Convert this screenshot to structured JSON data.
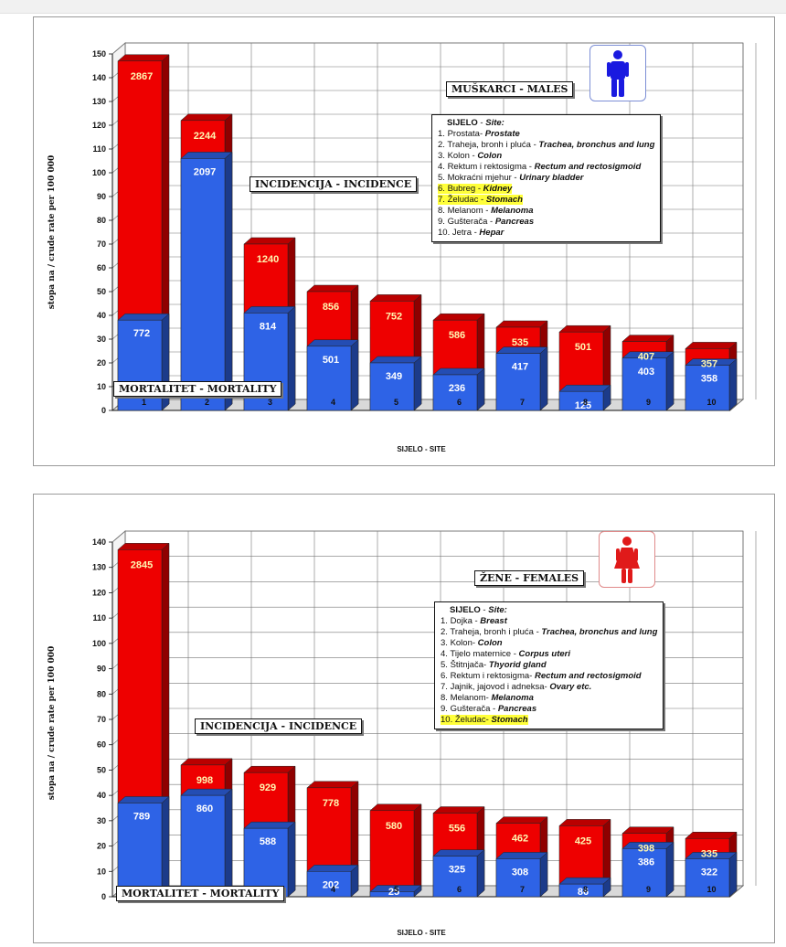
{
  "chart_data": [
    {
      "type": "bar",
      "title": "MUŠKARCI - MALES",
      "xlabel": "SIJELO - SITE",
      "ylabel": "stopa na / crude rate per 100 000",
      "ylim": [
        0,
        150
      ],
      "yticks": [
        "0",
        "10",
        "20",
        "30",
        "40",
        "50",
        "60",
        "70",
        "80",
        "90",
        "100",
        "110",
        "120",
        "130",
        "140",
        "150"
      ],
      "categories": [
        "1",
        "2",
        "3",
        "4",
        "5",
        "6",
        "7",
        "8",
        "9",
        "10"
      ],
      "series": [
        {
          "name": "INCIDENCIJA - INCIDENCE",
          "color": "#ee0000",
          "values": [
            147,
            122,
            70,
            50,
            46,
            38,
            35,
            33,
            29,
            26
          ],
          "labels": [
            "2867",
            "2244",
            "1240",
            "856",
            "752",
            "586",
            "535",
            "501",
            "407",
            "357"
          ]
        },
        {
          "name": "MORTALITET - MORTALITY",
          "color": "#2e63e6",
          "values": [
            38,
            106,
            41,
            27,
            20,
            15,
            24,
            8,
            22,
            19
          ],
          "labels": [
            "772",
            "2097",
            "814",
            "501",
            "349",
            "236",
            "417",
            "125",
            "403",
            "358"
          ]
        }
      ],
      "grid": true,
      "legend_title": "SIJELO - Site:",
      "legend": [
        {
          "num": "1.",
          "local": "Prostata-",
          "en": "Prostate",
          "highlight": false
        },
        {
          "num": "2.",
          "local": "Traheja, bronh i pluća -",
          "en": "Trachea, bronchus and lung",
          "highlight": false
        },
        {
          "num": "3.",
          "local": "Kolon -",
          "en": "Colon",
          "highlight": false
        },
        {
          "num": "4.",
          "local": "Rektum i rektosigma -",
          "en": "Rectum and rectosigmoid",
          "highlight": false
        },
        {
          "num": "5.",
          "local": "Mokraćni mjehur -",
          "en": "Urinary bladder",
          "highlight": false
        },
        {
          "num": "6.",
          "local": "Bubreg -",
          "en": "Kidney",
          "highlight": true
        },
        {
          "num": "7.",
          "local": "Želudac -",
          "en": "Stomach",
          "highlight": true
        },
        {
          "num": "8.",
          "local": "Melanom -",
          "en": "Melanoma",
          "highlight": false
        },
        {
          "num": "9.",
          "local": "Gušterača -",
          "en": "Pancreas",
          "highlight": false
        },
        {
          "num": "10.",
          "local": "Jetra -",
          "en": "Hepar",
          "highlight": false
        }
      ],
      "icon": "male-figure-icon",
      "icon_color": "#1a1ae0"
    },
    {
      "type": "bar",
      "title": "ŽENE - FEMALES",
      "xlabel": "SIJELO - SITE",
      "ylabel": "stopa na / crude rate per 100 000",
      "ylim": [
        0,
        140
      ],
      "yticks": [
        "0",
        "10",
        "20",
        "30",
        "40",
        "50",
        "60",
        "70",
        "80",
        "90",
        "100",
        "110",
        "120",
        "130",
        "140"
      ],
      "categories": [
        "1",
        "2",
        "3",
        "4",
        "5",
        "6",
        "7",
        "8",
        "9",
        "10"
      ],
      "series": [
        {
          "name": "INCIDENCIJA - INCIDENCE",
          "color": "#ee0000",
          "values": [
            137,
            52,
            49,
            43,
            34,
            33,
            29,
            28,
            25,
            23
          ],
          "labels": [
            "2845",
            "998",
            "929",
            "778",
            "580",
            "556",
            "462",
            "425",
            "398",
            "335"
          ]
        },
        {
          "name": "MORTALITET - MORTALITY",
          "color": "#2e63e6",
          "values": [
            37,
            40,
            27,
            10,
            2,
            16,
            15,
            5,
            19,
            15
          ],
          "labels": [
            "789",
            "860",
            "588",
            "202",
            "25",
            "325",
            "308",
            "86",
            "386",
            "322"
          ]
        }
      ],
      "grid": true,
      "legend_title": "SIJELO - Site:",
      "legend": [
        {
          "num": "1.",
          "local": "Dojka -",
          "en": "Breast",
          "highlight": false
        },
        {
          "num": "2.",
          "local": "Traheja, bronh i pluća -",
          "en": "Trachea, bronchus and lung",
          "highlight": false
        },
        {
          "num": "3.",
          "local": "Kolon-",
          "en": "Colon",
          "highlight": false
        },
        {
          "num": "4.",
          "local": "Tijelo maternice -",
          "en": "Corpus uteri",
          "highlight": false
        },
        {
          "num": "5.",
          "local": "Štitnjača-",
          "en": "Thyorid gland",
          "highlight": false
        },
        {
          "num": "6.",
          "local": "Rektum i rektosigma-",
          "en": "Rectum and rectosigmoid",
          "highlight": false
        },
        {
          "num": "7.",
          "local": "Jajnik, jajovod i adneksa-",
          "en": "Ovary etc.",
          "highlight": false
        },
        {
          "num": "8.",
          "local": "Melanom-",
          "en": "Melanoma",
          "highlight": false
        },
        {
          "num": "9.",
          "local": "Gušterača -",
          "en": "Pancreas",
          "highlight": false
        },
        {
          "num": "10.",
          "local": "Želudac-",
          "en": "Stomach",
          "highlight": true
        }
      ],
      "icon": "female-figure-icon",
      "icon_color": "#e01a1a"
    }
  ]
}
